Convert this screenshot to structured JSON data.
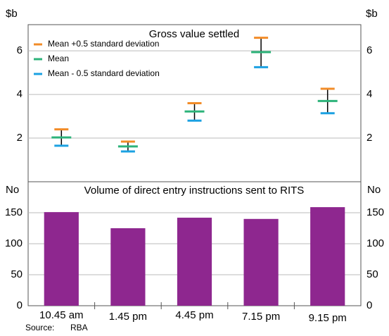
{
  "chart_data": [
    {
      "type": "errorbar",
      "title": "Gross value settled",
      "y_unit": "$b",
      "categories": [
        "10.45 am",
        "1.45 pm",
        "4.45 pm",
        "7.15 pm",
        "9.15 pm"
      ],
      "series": [
        {
          "name": "Mean +0.5 standard deviation",
          "color": "#f28c28",
          "values": [
            2.4,
            1.84,
            3.6,
            6.6,
            4.26
          ]
        },
        {
          "name": "Mean",
          "color": "#2db37a",
          "values": [
            2.03,
            1.62,
            3.22,
            5.94,
            3.7
          ]
        },
        {
          "name": "Mean - 0.5 standard deviation",
          "color": "#1ba1e2",
          "values": [
            1.65,
            1.39,
            2.8,
            5.25,
            3.14
          ]
        }
      ],
      "ylim": [
        0,
        7.2
      ],
      "yticks": [
        2,
        4,
        6
      ],
      "grid": true,
      "legend": "top-left"
    },
    {
      "type": "bar",
      "title": "Volume of direct entry instructions sent to RITS",
      "y_unit": "No",
      "categories": [
        "10.45 am",
        "1.45 pm",
        "4.45 pm",
        "7.15 pm",
        "9.15 pm"
      ],
      "values": [
        151,
        125,
        142,
        140,
        159
      ],
      "color": "#8e278f",
      "ylim": [
        0,
        200
      ],
      "yticks": [
        0,
        50,
        100,
        150
      ],
      "grid": true
    }
  ],
  "source_label": "Source:",
  "source": "RBA"
}
